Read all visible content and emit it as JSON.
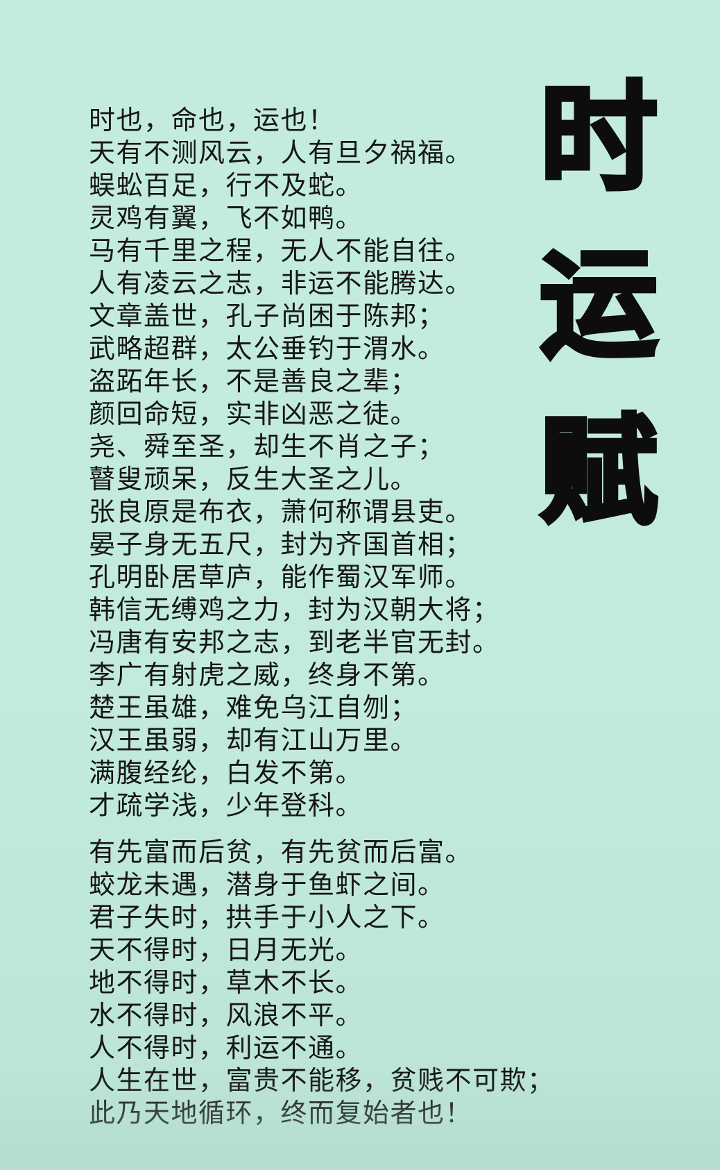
{
  "title": {
    "chars": [
      "时",
      "运",
      "赋"
    ]
  },
  "poem": {
    "stanzas": [
      [
        "时也，命也，运也！",
        "天有不测风云，人有旦夕祸福。",
        "蜈蚣百足，行不及蛇。",
        "灵鸡有翼，飞不如鸭。",
        "马有千里之程，无人不能自往。",
        "人有凌云之志，非运不能腾达。",
        "文章盖世，孔子尚困于陈邦；",
        "武略超群，太公垂钓于渭水。",
        "盗跖年长，不是善良之辈；",
        "颜回命短，实非凶恶之徒。",
        "尧、舜至圣，却生不肖之子；",
        "瞽叟顽呆，反生大圣之儿。",
        "张良原是布衣，萧何称谓县吏。",
        "晏子身无五尺，封为齐国首相；",
        "孔明卧居草庐，能作蜀汉军师。",
        "韩信无缚鸡之力，封为汉朝大将；",
        "冯唐有安邦之志，到老半官无封。",
        "李广有射虎之威，终身不第。",
        "楚王虽雄，难免乌江自刎；",
        "汉王虽弱，却有江山万里。",
        "满腹经纶，白发不第。",
        "才疏学浅，少年登科。"
      ],
      [
        "有先富而后贫，有先贫而后富。",
        "蛟龙未遇，潜身于鱼虾之间。",
        "君子失时，拱手于小人之下。",
        "天不得时，日月无光。",
        "地不得时，草木不长。",
        "水不得时，风浪不平。",
        "人不得时，利运不通。",
        "人生在世，富贵不能移，贫贱不可欺；",
        "此乃天地循环，终而复始者也！"
      ]
    ]
  },
  "colors": {
    "background": "#c4ecdd",
    "text": "#161616",
    "title": "#0d0d0d"
  }
}
